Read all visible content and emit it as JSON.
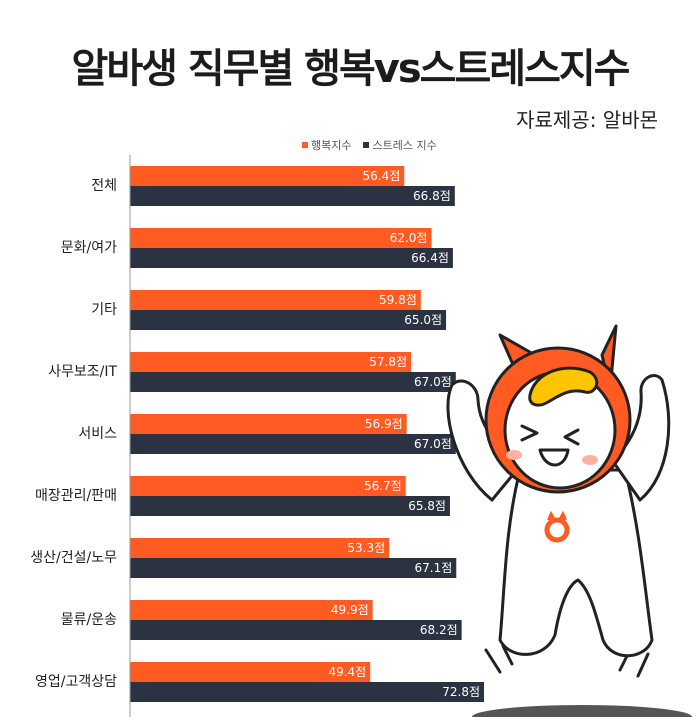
{
  "title": "알바생 직무별 행복vs스트레스지수",
  "source": "자료제공: 알바몬",
  "colors": {
    "happiness": "#ff5b22",
    "stress": "#2b3241",
    "value_text": "#ffffff"
  },
  "chart_data": {
    "type": "bar",
    "orientation": "horizontal",
    "categories": [
      "전체",
      "문화/여가",
      "기타",
      "사무보조/IT",
      "서비스",
      "매장관리/판매",
      "생산/건설/노무",
      "물류/운송",
      "영업/고객상담"
    ],
    "series": [
      {
        "name": "행복지수",
        "values": [
          56.4,
          62.0,
          59.8,
          57.8,
          56.9,
          56.7,
          53.3,
          49.9,
          49.4
        ],
        "labels": [
          "56.4점",
          "62.0점",
          "59.8점",
          "57.8점",
          "56.9점",
          "56.7점",
          "53.3점",
          "49.9점",
          "49.4점"
        ]
      },
      {
        "name": "스트레스 지수",
        "values": [
          66.8,
          66.4,
          65.0,
          67.0,
          67.0,
          65.8,
          67.1,
          68.2,
          72.8
        ],
        "labels": [
          "66.8점",
          "66.4점",
          "65.0점",
          "67.0점",
          "67.0점",
          "65.8점",
          "67.1점",
          "68.2점",
          "72.8점"
        ]
      }
    ],
    "xlim": [
      0,
      72.8
    ],
    "legend": "top"
  }
}
